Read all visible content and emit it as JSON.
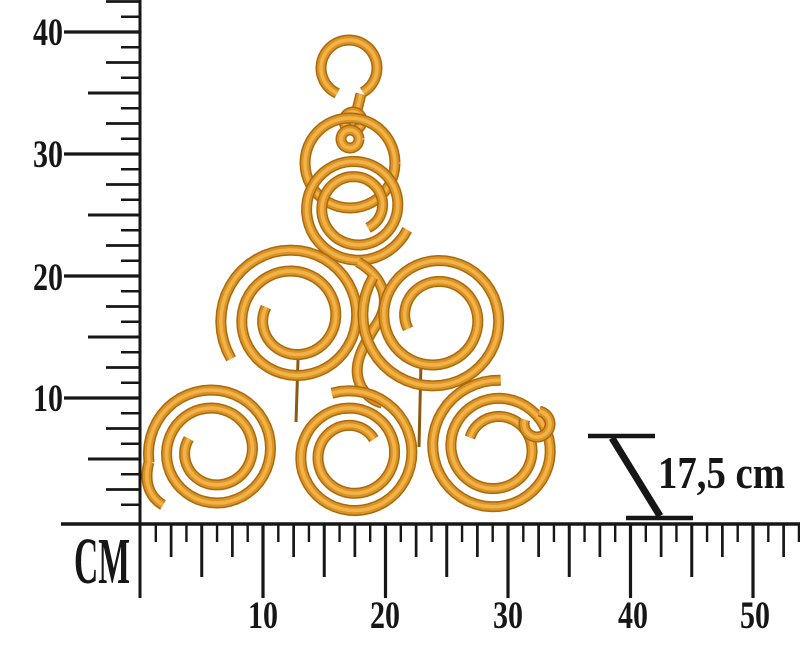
{
  "rulers": {
    "vertical": {
      "unit_label": "CM",
      "labels": [
        "40",
        "30",
        "20",
        "10"
      ]
    },
    "horizontal": {
      "labels": [
        "10",
        "20",
        "30",
        "40",
        "50"
      ]
    }
  },
  "dimension_annotation": {
    "depth_label": "17,5 cm"
  },
  "product": {
    "description": "golden metal scroll-work pyramid wall decor with hanging hook",
    "wire_colors": {
      "shadow": "#a8690f",
      "mid": "#db9322",
      "highlight": "#f2b24a"
    },
    "ruler_color": "#161616"
  }
}
